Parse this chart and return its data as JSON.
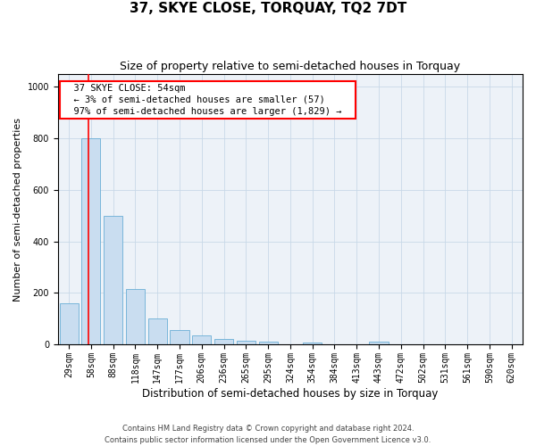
{
  "title": "37, SKYE CLOSE, TORQUAY, TQ2 7DT",
  "subtitle": "Size of property relative to semi-detached houses in Torquay",
  "xlabel": "Distribution of semi-detached houses by size in Torquay",
  "ylabel": "Number of semi-detached properties",
  "footnote1": "Contains HM Land Registry data © Crown copyright and database right 2024.",
  "footnote2": "Contains public sector information licensed under the Open Government Licence v3.0.",
  "categories": [
    "29sqm",
    "58sqm",
    "88sqm",
    "118sqm",
    "147sqm",
    "177sqm",
    "206sqm",
    "236sqm",
    "265sqm",
    "295sqm",
    "324sqm",
    "354sqm",
    "384sqm",
    "413sqm",
    "443sqm",
    "472sqm",
    "502sqm",
    "531sqm",
    "561sqm",
    "590sqm",
    "620sqm"
  ],
  "values": [
    160,
    800,
    500,
    215,
    100,
    55,
    35,
    20,
    13,
    10,
    0,
    8,
    0,
    0,
    10,
    0,
    0,
    0,
    0,
    0,
    0
  ],
  "bar_color": "#c9ddf0",
  "bar_edge_color": "#6aaed6",
  "grid_color": "#c8d8e8",
  "annotation_text": "  37 SKYE CLOSE: 54sqm  \n  ← 3% of semi-detached houses are smaller (57)  \n  97% of semi-detached houses are larger (1,829) →  ",
  "annotation_box_color": "white",
  "annotation_box_edge": "red",
  "vline_color": "red",
  "ylim": [
    0,
    1050
  ],
  "title_fontsize": 11,
  "subtitle_fontsize": 9,
  "xlabel_fontsize": 8.5,
  "ylabel_fontsize": 8,
  "tick_fontsize": 7,
  "annot_fontsize": 7.5,
  "footnote_fontsize": 6,
  "bg_color": "#edf2f8"
}
